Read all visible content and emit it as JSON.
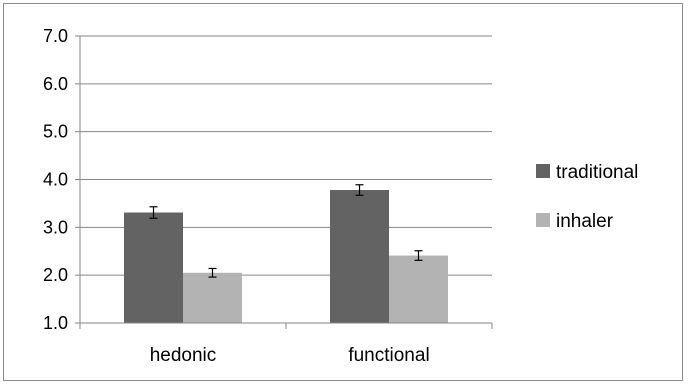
{
  "chart_data": {
    "type": "bar",
    "title": "",
    "xlabel": "",
    "ylabel": "",
    "ylim": [
      1.0,
      7.0
    ],
    "yticks": [
      "1.0",
      "2.0",
      "3.0",
      "4.0",
      "5.0",
      "6.0",
      "7.0"
    ],
    "categories": [
      "hedonic",
      "functional"
    ],
    "series": [
      {
        "name": "traditional",
        "color": "#636363",
        "values": [
          3.31,
          3.78
        ],
        "errors": [
          0.12,
          0.11
        ]
      },
      {
        "name": "inhaler",
        "color": "#b3b3b3",
        "values": [
          2.05,
          2.41
        ],
        "errors": [
          0.09,
          0.1
        ]
      }
    ],
    "grid": true,
    "legend": "right"
  }
}
